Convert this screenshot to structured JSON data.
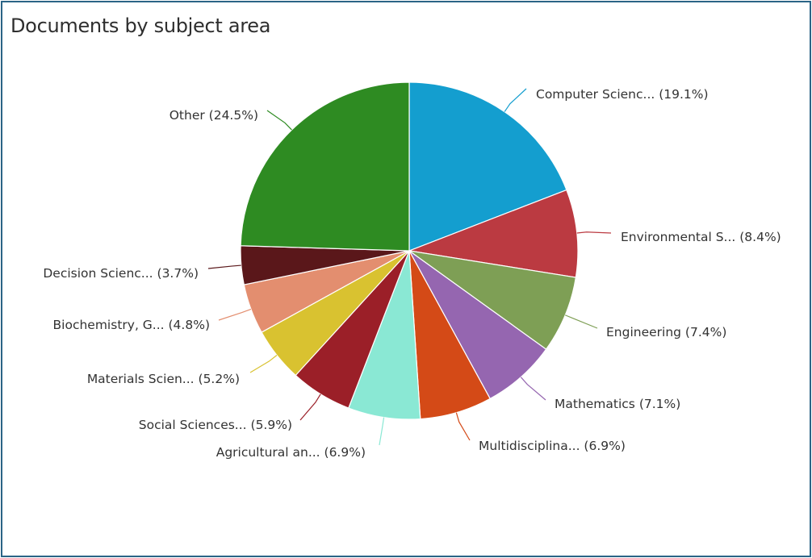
{
  "chart_data": {
    "type": "pie",
    "title": "Documents by subject area",
    "slices": [
      {
        "label": "Computer Scienc...",
        "value": 19.1,
        "display": "Computer Scienc... (19.1%)",
        "color": "#149ecf"
      },
      {
        "label": "Environmental S...",
        "value": 8.4,
        "display": "Environmental S... (8.4%)",
        "color": "#bb3a41"
      },
      {
        "label": "Engineering",
        "value": 7.4,
        "display": "Engineering (7.4%)",
        "color": "#7e9f55"
      },
      {
        "label": "Mathematics",
        "value": 7.1,
        "display": "Mathematics (7.1%)",
        "color": "#9566b0"
      },
      {
        "label": "Multidisciplina...",
        "value": 6.9,
        "display": "Multidisciplina... (6.9%)",
        "color": "#d44a17"
      },
      {
        "label": "Agricultural an...",
        "value": 6.9,
        "display": "Agricultural an... (6.9%)",
        "color": "#8ae8d4"
      },
      {
        "label": "Social Sciences...",
        "value": 5.9,
        "display": "Social Sciences... (5.9%)",
        "color": "#9b1f28"
      },
      {
        "label": "Materials Scien...",
        "value": 5.2,
        "display": "Materials Scien... (5.2%)",
        "color": "#d9c230"
      },
      {
        "label": "Biochemistry, G...",
        "value": 4.8,
        "display": "Biochemistry, G... (4.8%)",
        "color": "#e38e6f"
      },
      {
        "label": "Decision Scienc...",
        "value": 3.7,
        "display": "Decision Scienc... (3.7%)",
        "color": "#5a171a"
      },
      {
        "label": "Other",
        "value": 24.5,
        "display": "Other (24.5%)",
        "color": "#2e8b22"
      }
    ],
    "unit": "%",
    "start": "top",
    "direction": "clockwise"
  }
}
